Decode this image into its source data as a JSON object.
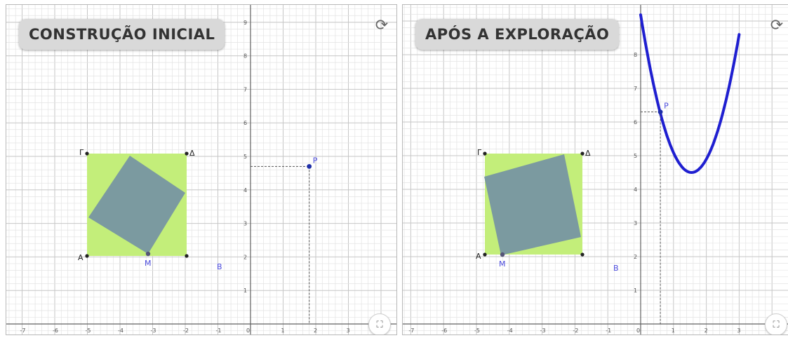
{
  "colors": {
    "outer_square": "#c3ee7a",
    "inner_square": "#7b9aa0",
    "curve": "#1f1fd0",
    "point": "#1f2fa8",
    "point_label": "#4b4bdd",
    "vertex_label": "#222222"
  },
  "icons": {
    "reset": "reset-icon",
    "fullscreen": "fullscreen-icon"
  },
  "panels": [
    {
      "title": "CONSTRUÇÃO INICIAL",
      "x_ticks": [
        "-7",
        "-6",
        "-5",
        "-4",
        "-3",
        "-2",
        "-1",
        "0",
        "1",
        "2",
        "3"
      ],
      "y_ticks": [
        "1",
        "2",
        "3",
        "4",
        "5",
        "6",
        "7",
        "8",
        "9"
      ],
      "vertex_labels": {
        "A": "A",
        "B": "B",
        "G": "Γ",
        "D": "Δ",
        "M": "M"
      },
      "point_label": "P",
      "point": {
        "x": 1.8,
        "y": 4.7
      }
    },
    {
      "title": "APÓS A EXPLORAÇÃO",
      "x_ticks": [
        "-7",
        "-6",
        "-5",
        "-4",
        "-3",
        "-2",
        "-1",
        "0",
        "1",
        "2",
        "3"
      ],
      "y_ticks": [
        "1",
        "2",
        "3",
        "4",
        "5",
        "6",
        "7",
        "8"
      ],
      "vertex_labels": {
        "A": "A",
        "B": "B",
        "G": "Γ",
        "D": "Δ",
        "M": "M"
      },
      "point_label": "P",
      "point": {
        "x": 0.6,
        "y": 6.3
      }
    }
  ]
}
